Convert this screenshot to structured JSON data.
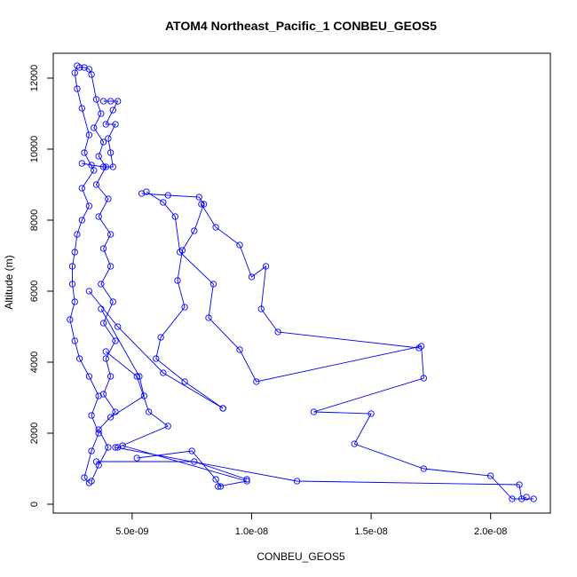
{
  "chart_data": {
    "type": "line",
    "title": "ATOM4 Northeast_Pacific_1 CONBEU_GEOS5",
    "xlabel": "CONBEU_GEOS5",
    "ylabel": "Altitude (m)",
    "xlim": [
      1.7e-09,
      2.25e-08
    ],
    "ylim": [
      -250,
      12700
    ],
    "x_ticks": [
      5e-09,
      1e-08,
      1.5e-08,
      2e-08
    ],
    "x_tick_labels": [
      "5.0e-09",
      "1.0e-08",
      "1.5e-08",
      "2.0e-08"
    ],
    "y_ticks": [
      0,
      2000,
      4000,
      6000,
      8000,
      10000,
      12000
    ],
    "y_tick_labels": [
      "0",
      "2000",
      "4000",
      "6000",
      "8000",
      "10000",
      "12000"
    ],
    "grid": false,
    "line_color": "#0000FF",
    "series": [
      {
        "points": [
          [
            2.7e-09,
            12350
          ],
          [
            2.6e-09,
            12150
          ],
          [
            2.7e-09,
            11700
          ],
          [
            2.9e-09,
            11150
          ],
          [
            3.2e-09,
            10400
          ],
          [
            3e-09,
            9900
          ],
          [
            3.4e-09,
            9400
          ],
          [
            2.9e-09,
            8900
          ],
          [
            3.2e-09,
            8400
          ],
          [
            2.9e-09,
            8000
          ],
          [
            2.7e-09,
            7600
          ],
          [
            2.6e-09,
            7100
          ],
          [
            2.5e-09,
            6700
          ],
          [
            2.5e-09,
            6200
          ],
          [
            2.6e-09,
            5700
          ],
          [
            2.4e-09,
            5200
          ],
          [
            2.6e-09,
            4600
          ],
          [
            2.8e-09,
            4100
          ],
          [
            3.2e-09,
            3600
          ],
          [
            3.6e-09,
            3050
          ],
          [
            3.3e-09,
            2500
          ],
          [
            3.6e-09,
            2000
          ],
          [
            3.3e-09,
            1500
          ],
          [
            3e-09,
            750
          ],
          [
            3.2e-09,
            600
          ]
        ]
      },
      {
        "points": [
          [
            2.8e-09,
            12300
          ],
          [
            3e-09,
            12300
          ],
          [
            3.2e-09,
            12250
          ],
          [
            3.3e-09,
            12100
          ],
          [
            3.5e-09,
            11400
          ],
          [
            3.7e-09,
            11000
          ],
          [
            3.4e-09,
            10600
          ],
          [
            3.8e-09,
            10200
          ],
          [
            3.6e-09,
            9800
          ],
          [
            3.9e-09,
            9500
          ],
          [
            3.5e-09,
            9000
          ],
          [
            4e-09,
            8600
          ],
          [
            3.6e-09,
            8100
          ],
          [
            4.1e-09,
            7600
          ],
          [
            3.8e-09,
            7200
          ],
          [
            4.1e-09,
            6700
          ],
          [
            3.7e-09,
            6200
          ],
          [
            4.2e-09,
            5700
          ],
          [
            3.8e-09,
            5100
          ],
          [
            4.3e-09,
            4600
          ],
          [
            3.9e-09,
            4100
          ],
          [
            4.1e-09,
            3600
          ],
          [
            3.8e-09,
            3100
          ],
          [
            4.3e-09,
            2600
          ],
          [
            3.6e-09,
            2100
          ],
          [
            4e-09,
            1600
          ],
          [
            3.6e-09,
            1100
          ],
          [
            3.3e-09,
            650
          ]
        ]
      },
      {
        "points": [
          [
            3.8e-09,
            11350
          ],
          [
            4.1e-09,
            11350
          ],
          [
            4.4e-09,
            11350
          ],
          [
            4.2e-09,
            11100
          ],
          [
            3.9e-09,
            10700
          ],
          [
            4.3e-09,
            10700
          ],
          [
            4e-09,
            10300
          ],
          [
            4.1e-09,
            9900
          ],
          [
            4.2e-09,
            9500
          ],
          [
            3.8e-09,
            9500
          ],
          [
            3.3e-09,
            9550
          ],
          [
            2.9e-09,
            9600
          ]
        ]
      },
      {
        "points": [
          [
            3.2e-09,
            6000
          ],
          [
            4.4e-09,
            5000
          ],
          [
            6.3e-09,
            3700
          ],
          [
            8.8e-09,
            2700
          ]
        ]
      },
      {
        "points": [
          [
            3.7e-09,
            5500
          ],
          [
            5.3e-09,
            3600
          ],
          [
            5.5e-09,
            3050
          ],
          [
            4.1e-09,
            2450
          ]
        ]
      },
      {
        "points": [
          [
            3.9e-09,
            4300
          ],
          [
            5.2e-09,
            3600
          ],
          [
            5.7e-09,
            2600
          ],
          [
            6.5e-09,
            2200
          ],
          [
            4.4e-09,
            1600
          ]
        ]
      },
      {
        "points": [
          [
            5.4e-09,
            8750
          ],
          [
            6.5e-09,
            8700
          ],
          [
            7.8e-09,
            8650
          ],
          [
            8e-09,
            8450
          ],
          [
            7.6e-09,
            7700
          ],
          [
            7.1e-09,
            7150
          ],
          [
            6.9e-09,
            6300
          ],
          [
            7.2e-09,
            5550
          ],
          [
            6.2e-09,
            4700
          ],
          [
            6e-09,
            4100
          ],
          [
            7.2e-09,
            3450
          ],
          [
            8.8e-09,
            2700
          ]
        ]
      },
      {
        "points": [
          [
            5.6e-09,
            8800
          ],
          [
            6.3e-09,
            8500
          ],
          [
            6.8e-09,
            8100
          ],
          [
            7e-09,
            7100
          ],
          [
            8.4e-09,
            6200
          ],
          [
            8.2e-09,
            5250
          ],
          [
            9.5e-09,
            4350
          ],
          [
            1.02e-08,
            3450
          ],
          [
            1.71e-08,
            4450
          ],
          [
            1.72e-08,
            3550
          ],
          [
            1.26e-08,
            2600
          ],
          [
            1.5e-08,
            2550
          ],
          [
            1.43e-08,
            1700
          ],
          [
            1.72e-08,
            1000
          ],
          [
            2e-08,
            800
          ],
          [
            2.09e-08,
            150
          ],
          [
            2.18e-08,
            150
          ]
        ]
      },
      {
        "points": [
          [
            7.9e-09,
            8450
          ],
          [
            8.5e-09,
            7800
          ],
          [
            9.5e-09,
            7300
          ],
          [
            1e-08,
            6400
          ],
          [
            1.06e-08,
            6700
          ],
          [
            1.04e-08,
            5500
          ],
          [
            1.11e-08,
            4850
          ],
          [
            1.7e-08,
            4400
          ]
        ]
      },
      {
        "points": [
          [
            4.3e-09,
            1600
          ],
          [
            1.19e-08,
            650
          ],
          [
            2.12e-08,
            550
          ],
          [
            2.13e-08,
            150
          ],
          [
            2.15e-08,
            200
          ]
        ]
      },
      {
        "points": [
          [
            5.2e-09,
            1300
          ],
          [
            7.5e-09,
            1500
          ],
          [
            8.5e-09,
            700
          ],
          [
            8.7e-09,
            500
          ]
        ]
      },
      {
        "points": [
          [
            4.6e-09,
            1650
          ],
          [
            9.8e-09,
            650
          ],
          [
            8.6e-09,
            500
          ]
        ]
      },
      {
        "points": [
          [
            3.5e-09,
            1200
          ],
          [
            7.6e-09,
            1200
          ],
          [
            9.8e-09,
            700
          ]
        ]
      }
    ]
  }
}
